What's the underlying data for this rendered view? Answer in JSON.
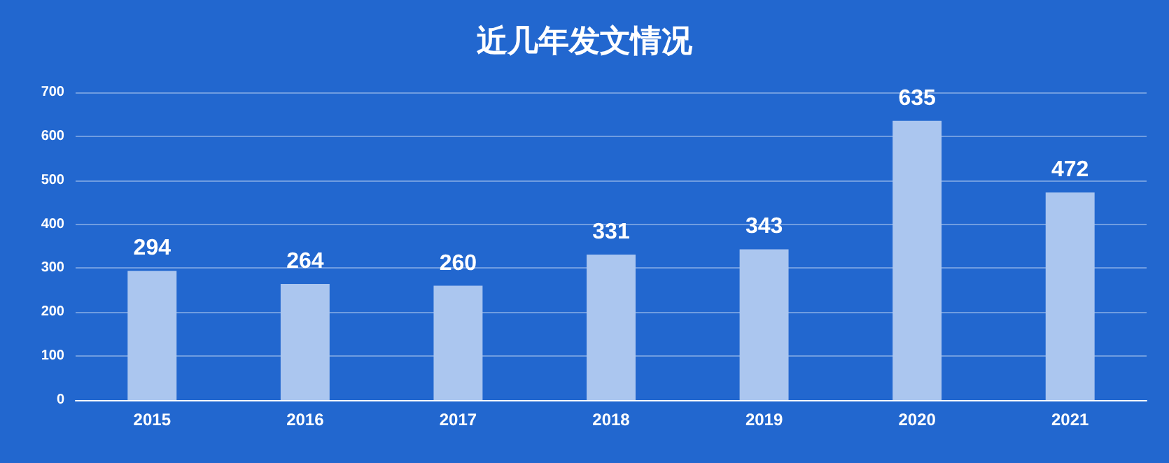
{
  "chart_data": {
    "type": "bar",
    "title": "近几年发文情况",
    "categories": [
      "2015",
      "2016",
      "2017",
      "2018",
      "2019",
      "2020",
      "2021"
    ],
    "values": [
      294,
      264,
      260,
      331,
      343,
      635,
      472
    ],
    "color": "#abc6ef",
    "ylim": [
      0,
      700
    ],
    "yticks": [
      0,
      100,
      200,
      300,
      400,
      500,
      600,
      700
    ],
    "grid": "y",
    "data_labels": true
  }
}
